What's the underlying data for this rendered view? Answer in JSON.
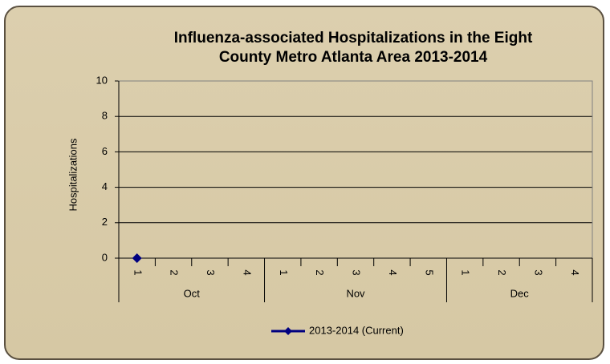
{
  "chart_data": {
    "type": "line",
    "title": [
      "Influenza-associated Hospitalizations in the Eight",
      "County Metro Atlanta Area 2013-2014"
    ],
    "y_label": "Hospitalizations",
    "groups": [
      {
        "name": "Oct",
        "categories": [
          "1",
          "2",
          "3",
          "4"
        ]
      },
      {
        "name": "Nov",
        "categories": [
          "1",
          "2",
          "3",
          "4",
          "5"
        ]
      },
      {
        "name": "Dec",
        "categories": [
          "1",
          "2",
          "3",
          "4"
        ]
      }
    ],
    "series": [
      {
        "name": "2013-2014 (Current)",
        "color": "#000080",
        "values": [
          0,
          null,
          null,
          null,
          null,
          null,
          null,
          null,
          null,
          null,
          null,
          null,
          null
        ]
      }
    ],
    "ylim": [
      0,
      10
    ],
    "yticks": [
      0,
      2,
      4,
      6,
      8,
      10
    ],
    "grid": true,
    "legend": "bottom"
  }
}
